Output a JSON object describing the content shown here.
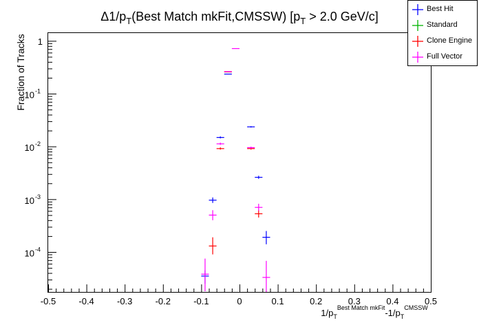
{
  "chart_data": {
    "type": "scatter",
    "title": "Δ1/p_T(Best Match mkFit,CMSSW) [p_T > 2.0 GeV/c]",
    "xlabel": "1/p_T^{Best Match mkFit}-1/p_T^{CMSSW}",
    "ylabel": "Fraction of Tracks",
    "xlim": [
      -0.5,
      0.5
    ],
    "ylim": [
      1.75e-05,
      1.45
    ],
    "yscale": "log",
    "x_ticks": [
      "-0.5",
      "-0.4",
      "-0.3",
      "-0.2",
      "-0.1",
      "0",
      "0.1",
      "0.2",
      "0.3",
      "0.4",
      "0.5"
    ],
    "y_ticks": [
      "1",
      "10^-1",
      "10^-2",
      "10^-3",
      "10^-4"
    ],
    "legend_position": "top-right",
    "grid": false,
    "bin_half_width": 0.01,
    "series": [
      {
        "name": "Best Hit",
        "color": "#0000ff",
        "points": [
          {
            "x": -0.09,
            "y": 3.5e-05,
            "lo": 2.5e-05,
            "hi": 4.5e-05
          },
          {
            "x": -0.07,
            "y": 0.00096,
            "lo": 0.00085,
            "hi": 0.00108
          },
          {
            "x": -0.05,
            "y": 0.0148,
            "lo": 0.0142,
            "hi": 0.0155
          },
          {
            "x": -0.03,
            "y": 0.235,
            "lo": 0.232,
            "hi": 0.238
          },
          {
            "x": 0.03,
            "y": 0.0235,
            "lo": 0.0228,
            "hi": 0.0242
          },
          {
            "x": 0.05,
            "y": 0.0026,
            "lo": 0.00243,
            "hi": 0.00278
          },
          {
            "x": 0.07,
            "y": 0.00019,
            "lo": 0.00014,
            "hi": 0.00025
          }
        ]
      },
      {
        "name": "Standard",
        "color": "#00b400",
        "points": []
      },
      {
        "name": "Clone Engine",
        "color": "#ff0000",
        "points": [
          {
            "x": -0.07,
            "y": 0.00013,
            "lo": 9e-05,
            "hi": 0.00019
          },
          {
            "x": -0.05,
            "y": 0.0091,
            "lo": 0.0087,
            "hi": 0.0096
          },
          {
            "x": -0.03,
            "y": 0.258,
            "lo": 0.255,
            "hi": 0.261
          },
          {
            "x": 0.03,
            "y": 0.0091,
            "lo": 0.0087,
            "hi": 0.0096
          },
          {
            "x": 0.05,
            "y": 0.00053,
            "lo": 0.00045,
            "hi": 0.00063
          }
        ]
      },
      {
        "name": "Full Vector",
        "color": "#ff00ff",
        "points": [
          {
            "x": -0.09,
            "y": 3.8e-05,
            "lo": 1.8e-05,
            "hi": 7.5e-05
          },
          {
            "x": -0.07,
            "y": 0.0005,
            "lo": 0.0004,
            "hi": 0.00062
          },
          {
            "x": -0.05,
            "y": 0.0112,
            "lo": 0.0107,
            "hi": 0.0118
          },
          {
            "x": -0.03,
            "y": 0.262,
            "lo": 0.259,
            "hi": 0.265
          },
          {
            "x": -0.01,
            "y": 0.715,
            "lo": 0.712,
            "hi": 0.718
          },
          {
            "x": 0.03,
            "y": 0.0095,
            "lo": 0.0091,
            "hi": 0.0099
          },
          {
            "x": 0.05,
            "y": 0.0007,
            "lo": 0.0006,
            "hi": 0.00082
          },
          {
            "x": 0.07,
            "y": 3.3e-05,
            "lo": 1.75e-05,
            "hi": 6.8e-05
          }
        ]
      }
    ]
  }
}
